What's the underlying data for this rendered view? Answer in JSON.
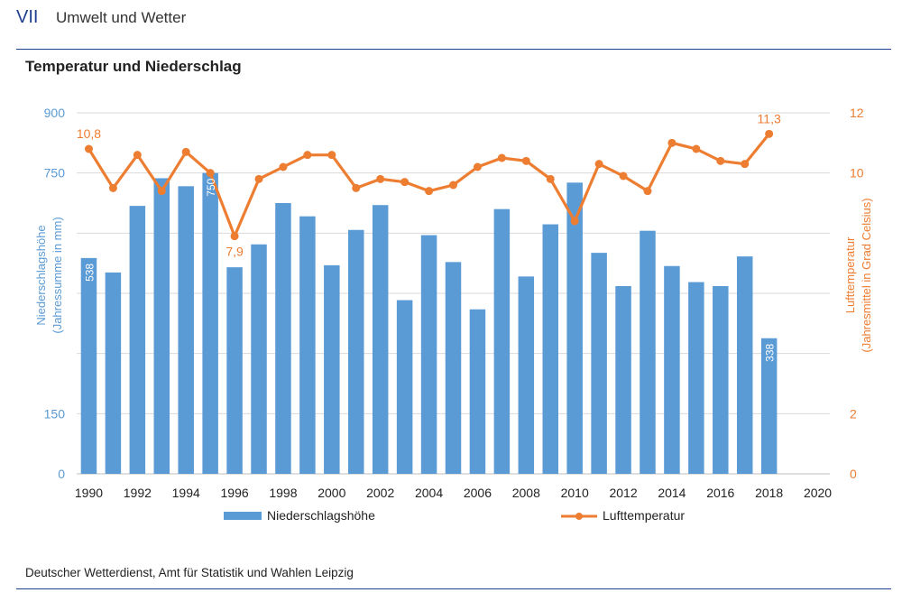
{
  "header": {
    "chapter_number": "VII",
    "chapter_title": "Umwelt und Wetter"
  },
  "source_note": "Deutscher Wetterdienst, Amt für Statistik und Wahlen Leipzig",
  "chart_data": {
    "type": "bar+line",
    "title": "Temperatur und Niederschlag",
    "xlabel": "",
    "x_ticks": [
      "1990",
      "1992",
      "1994",
      "1996",
      "1998",
      "2000",
      "2002",
      "2004",
      "2006",
      "2008",
      "2010",
      "2012",
      "2014",
      "2016",
      "2018",
      "2020"
    ],
    "x_range": [
      1989.5,
      2020.5
    ],
    "left_axis": {
      "label_line1": "Niederschlagshöhe",
      "label_line2": "(Jahressumme in mm)",
      "ticks": [
        "0",
        "150",
        "750",
        "900"
      ],
      "tick_values": [
        0,
        150,
        750,
        900
      ],
      "ylim": [
        0,
        900
      ],
      "color": "#5b9bd5"
    },
    "right_axis": {
      "label_line1": "Lufttemperatur",
      "label_line2": "(Jahresmittel in Grad Celsius)",
      "ticks": [
        "0",
        "2",
        "10",
        "12"
      ],
      "tick_values": [
        0,
        2,
        10,
        12
      ],
      "ylim": [
        0,
        12
      ],
      "color": "#ed7d31"
    },
    "grid": true,
    "legend_position": "bottom",
    "years": [
      1990,
      1991,
      1992,
      1993,
      1994,
      1995,
      1996,
      1997,
      1998,
      1999,
      2000,
      2001,
      2002,
      2003,
      2004,
      2005,
      2006,
      2007,
      2008,
      2009,
      2010,
      2011,
      2012,
      2013,
      2014,
      2015,
      2016,
      2017,
      2018
    ],
    "series": [
      {
        "name": "Niederschlagshöhe",
        "kind": "bar",
        "color": "#5b9bd5",
        "values": [
          538,
          502,
          668,
          737,
          717,
          750,
          515,
          572,
          675,
          642,
          520,
          608,
          670,
          433,
          595,
          528,
          410,
          660,
          492,
          622,
          726,
          551,
          468,
          606,
          518,
          478,
          468,
          542,
          338
        ],
        "data_labels": {
          "0": "538",
          "5": "750",
          "28": "338"
        }
      },
      {
        "name": "Lufttemperatur",
        "kind": "line",
        "color": "#ed7d31",
        "values": [
          10.8,
          9.5,
          10.6,
          9.4,
          10.7,
          10.0,
          7.9,
          9.8,
          10.2,
          10.6,
          10.6,
          9.5,
          9.8,
          9.7,
          9.4,
          9.6,
          10.2,
          10.5,
          10.4,
          9.8,
          8.4,
          10.3,
          9.9,
          9.4,
          11.0,
          10.8,
          10.4,
          10.3,
          11.3
        ],
        "data_labels": {
          "0": "10,8",
          "6": "7,9",
          "28": "11,3"
        }
      }
    ]
  }
}
